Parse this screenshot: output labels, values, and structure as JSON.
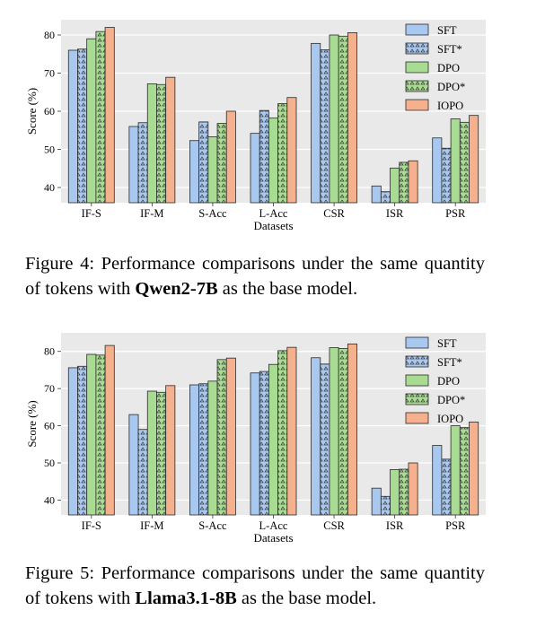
{
  "colors": {
    "SFT": "#a9c8ef",
    "SFT*": "#a9c8ef",
    "DPO": "#a9dc93",
    "DPO*": "#a9dc93",
    "IOPO": "#f5b08d",
    "plot_bg": "#e9e9e9",
    "grid": "#ffffff",
    "edge": "#2a2a2a"
  },
  "chart_data": [
    {
      "type": "bar",
      "title": "",
      "xlabel": "Datasets",
      "ylabel": "Score (%)",
      "ylim": [
        36,
        84
      ],
      "yticks": [
        40,
        50,
        60,
        70,
        80
      ],
      "legend": "top-right",
      "categories": [
        "IF-S",
        "IF-M",
        "S-Acc",
        "L-Acc",
        "CSR",
        "ISR",
        "PSR"
      ],
      "series": [
        {
          "name": "SFT",
          "pattern": "solid",
          "values": [
            76.0,
            56.0,
            52.3,
            54.2,
            77.8,
            40.4,
            53.0
          ]
        },
        {
          "name": "SFT*",
          "pattern": "hatch",
          "values": [
            76.3,
            57.0,
            57.2,
            60.2,
            76.1,
            38.9,
            50.3
          ]
        },
        {
          "name": "DPO",
          "pattern": "solid",
          "values": [
            79.0,
            67.2,
            53.3,
            58.2,
            80.0,
            45.1,
            58.0
          ]
        },
        {
          "name": "DPO*",
          "pattern": "hatch",
          "values": [
            80.9,
            67.0,
            56.8,
            62.0,
            79.7,
            46.6,
            57.1
          ]
        },
        {
          "name": "IOPO",
          "pattern": "solid",
          "values": [
            82.0,
            68.9,
            60.0,
            63.6,
            80.6,
            47.0,
            58.9
          ]
        }
      ]
    },
    {
      "type": "bar",
      "title": "",
      "xlabel": "Datasets",
      "ylabel": "Score (%)",
      "ylim": [
        36,
        85
      ],
      "yticks": [
        40,
        50,
        60,
        70,
        80
      ],
      "legend": "top-right",
      "categories": [
        "IF-S",
        "IF-M",
        "S-Acc",
        "L-Acc",
        "CSR",
        "ISR",
        "PSR"
      ],
      "series": [
        {
          "name": "SFT",
          "pattern": "solid",
          "values": [
            75.6,
            63.0,
            71.0,
            74.2,
            78.3,
            43.2,
            54.7
          ]
        },
        {
          "name": "SFT*",
          "pattern": "hatch",
          "values": [
            76.0,
            59.0,
            71.3,
            74.6,
            76.6,
            41.0,
            51.0
          ]
        },
        {
          "name": "DPO",
          "pattern": "solid",
          "values": [
            79.2,
            69.3,
            72.0,
            76.5,
            81.0,
            48.2,
            60.0
          ]
        },
        {
          "name": "DPO*",
          "pattern": "hatch",
          "values": [
            79.0,
            69.0,
            77.8,
            80.2,
            80.8,
            48.3,
            59.5
          ]
        },
        {
          "name": "IOPO",
          "pattern": "solid",
          "values": [
            81.6,
            70.8,
            78.2,
            81.1,
            82.0,
            50.0,
            61.0
          ]
        }
      ]
    }
  ],
  "captions": [
    {
      "prefix": "Figure 4:  Performance comparisons under the same quantity of tokens with ",
      "bold": "Qwen2-7B",
      "suffix": " as the base model."
    },
    {
      "prefix": "Figure 5:  Performance comparisons under the same quantity of tokens with ",
      "bold": "Llama3.1-8B",
      "suffix": " as the base model."
    }
  ]
}
